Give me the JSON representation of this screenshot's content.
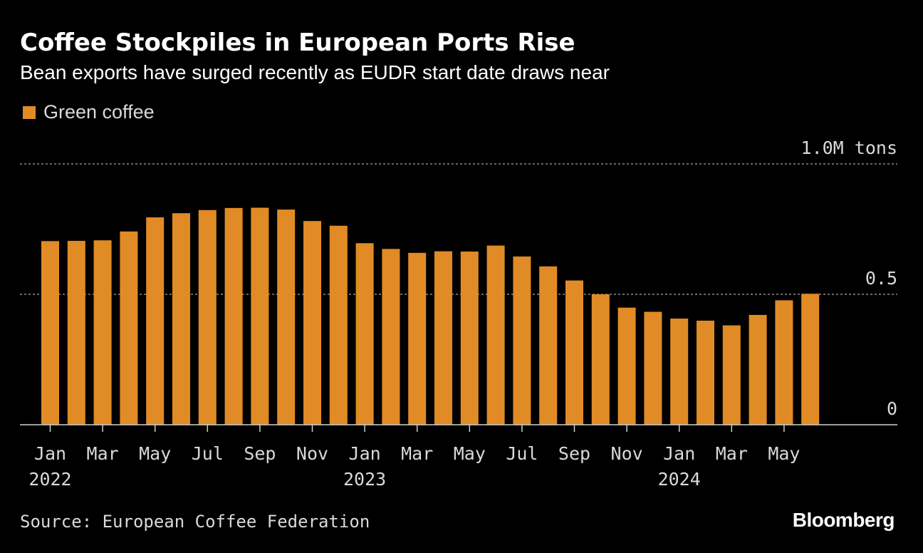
{
  "header": {
    "title": "Coffee Stockpiles in European Ports Rise",
    "subtitle": "Bean exports have surged recently as EUDR start date draws near"
  },
  "footer": {
    "source": "Source: European Coffee Federation",
    "brand": "Bloomberg"
  },
  "colors": {
    "bar": "#e08b25",
    "background": "#000000",
    "grid": "#8a8a8a",
    "text": "#d9d9d9"
  },
  "chart_data": {
    "type": "bar",
    "title": "Coffee Stockpiles in European Ports Rise",
    "subtitle": "Bean exports have surged recently as EUDR start date draws near",
    "series": [
      {
        "name": "Green coffee",
        "values": [
          0.704,
          0.705,
          0.707,
          0.741,
          0.795,
          0.811,
          0.823,
          0.831,
          0.832,
          0.825,
          0.781,
          0.763,
          0.696,
          0.674,
          0.659,
          0.665,
          0.664,
          0.687,
          0.645,
          0.607,
          0.553,
          0.5,
          0.449,
          0.433,
          0.407,
          0.399,
          0.381,
          0.421,
          0.477,
          0.502
        ]
      }
    ],
    "categories": [
      "2022-01",
      "2022-02",
      "2022-03",
      "2022-04",
      "2022-05",
      "2022-06",
      "2022-07",
      "2022-08",
      "2022-09",
      "2022-10",
      "2022-11",
      "2022-12",
      "2023-01",
      "2023-02",
      "2023-03",
      "2023-04",
      "2023-05",
      "2023-06",
      "2023-07",
      "2023-08",
      "2023-09",
      "2023-10",
      "2023-11",
      "2023-12",
      "2024-01",
      "2024-02",
      "2024-03",
      "2024-04",
      "2024-05",
      "2024-06"
    ],
    "x_tick_labels": [
      {
        "index": 0,
        "month": "Jan",
        "year": "2022"
      },
      {
        "index": 2,
        "month": "Mar",
        "year": ""
      },
      {
        "index": 4,
        "month": "May",
        "year": ""
      },
      {
        "index": 6,
        "month": "Jul",
        "year": ""
      },
      {
        "index": 8,
        "month": "Sep",
        "year": ""
      },
      {
        "index": 10,
        "month": "Nov",
        "year": ""
      },
      {
        "index": 12,
        "month": "Jan",
        "year": "2023"
      },
      {
        "index": 14,
        "month": "Mar",
        "year": ""
      },
      {
        "index": 16,
        "month": "May",
        "year": ""
      },
      {
        "index": 18,
        "month": "Jul",
        "year": ""
      },
      {
        "index": 20,
        "month": "Sep",
        "year": ""
      },
      {
        "index": 22,
        "month": "Nov",
        "year": ""
      },
      {
        "index": 24,
        "month": "Jan",
        "year": "2024"
      },
      {
        "index": 26,
        "month": "Mar",
        "year": ""
      },
      {
        "index": 28,
        "month": "May",
        "year": ""
      }
    ],
    "y_ticks": [
      {
        "value": 0,
        "label": "0"
      },
      {
        "value": 0.5,
        "label": "0.5"
      },
      {
        "value": 1.0,
        "label": "1.0M tons"
      }
    ],
    "ylim": [
      0,
      1.0
    ],
    "xlabel": "",
    "ylabel": "",
    "legend": "top-left",
    "grid": true
  }
}
